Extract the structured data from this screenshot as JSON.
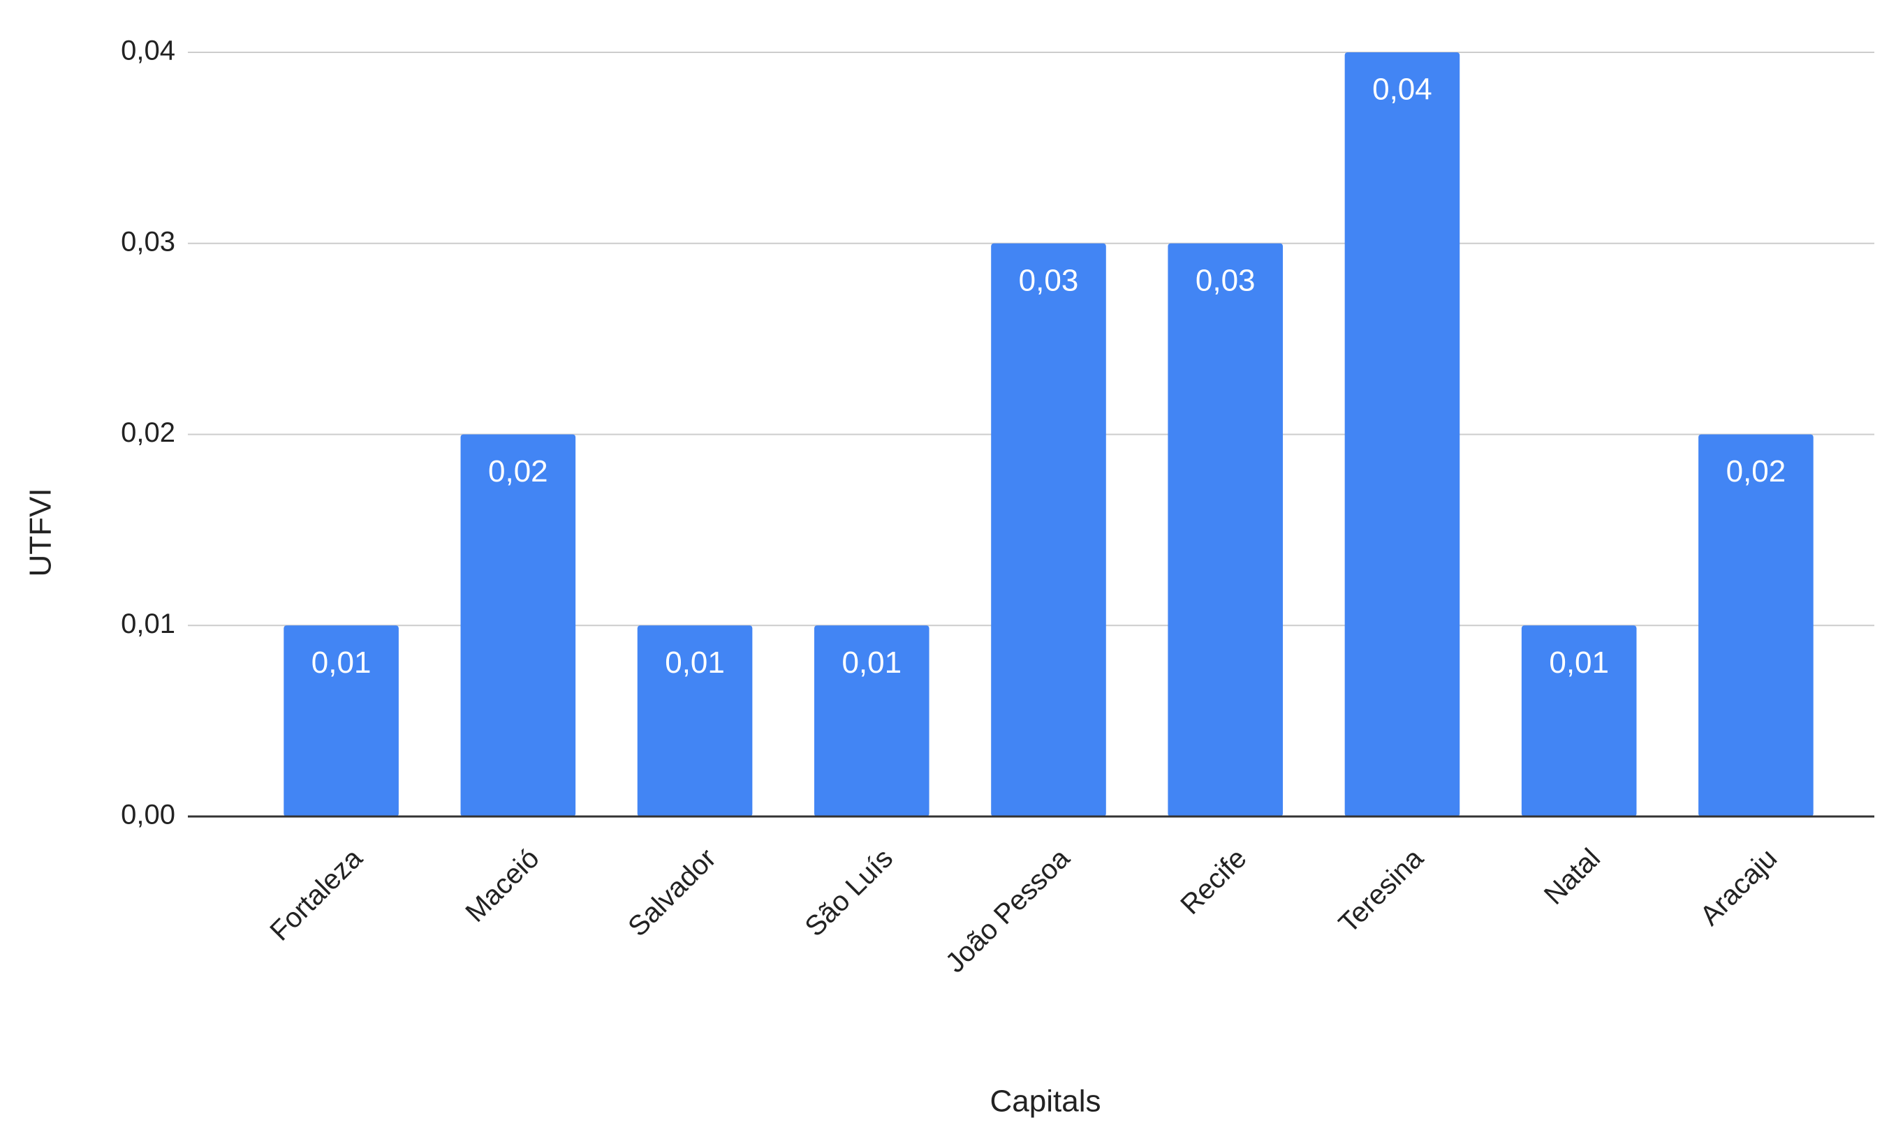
{
  "chart_data": {
    "type": "bar",
    "x_label": "Capitals",
    "y_label": "UTFVI",
    "categories": [
      "Fortaleza",
      "Maceió",
      "Salvador",
      "São Luís",
      "João Pessoa",
      "Recife",
      "Teresina",
      "Natal",
      "Aracaju"
    ],
    "values": [
      0.01,
      0.02,
      0.01,
      0.01,
      0.03,
      0.03,
      0.04,
      0.01,
      0.02
    ],
    "value_labels": [
      "0,01",
      "0,02",
      "0,01",
      "0,01",
      "0,03",
      "0,03",
      "0,04",
      "0,01",
      "0,02"
    ],
    "color": "#4285f4",
    "ylim": [
      0,
      0.04
    ],
    "yticks": [
      {
        "value": 0,
        "label": "0,00"
      },
      {
        "value": 0.01,
        "label": "0,01"
      },
      {
        "value": 0.02,
        "label": "0,02"
      },
      {
        "value": 0.03,
        "label": "0,03"
      },
      {
        "value": 0.04,
        "label": "0,04"
      }
    ],
    "grid": true
  }
}
